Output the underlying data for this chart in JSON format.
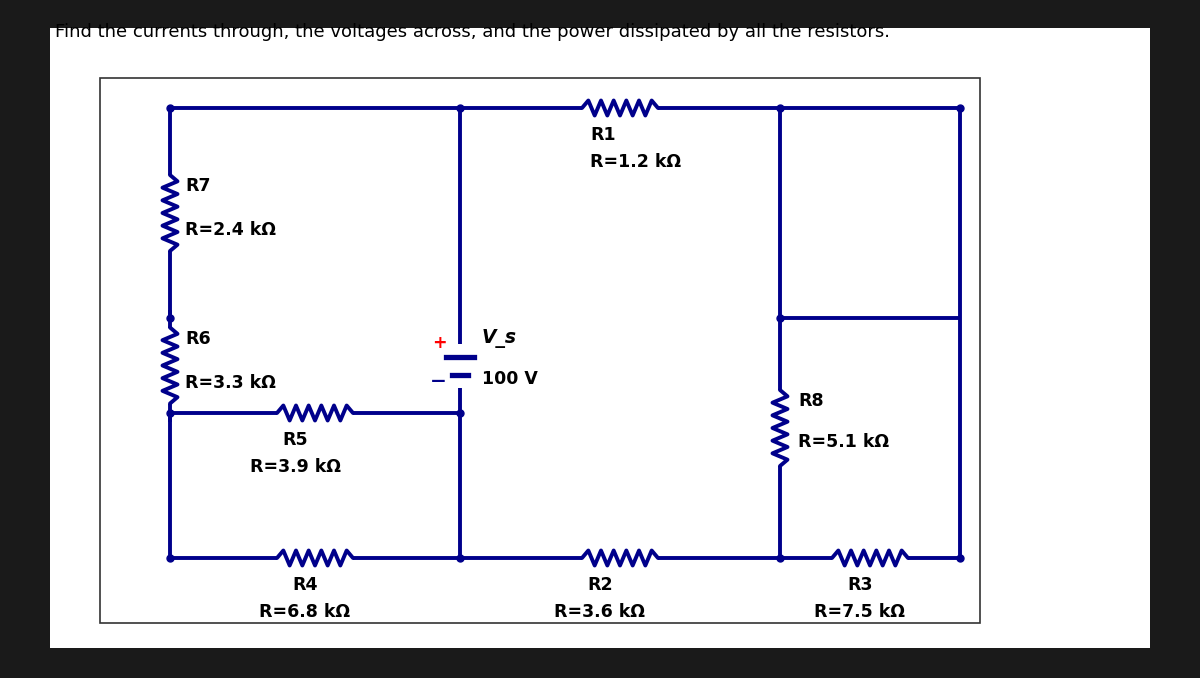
{
  "title": "Find the currents through, the voltages across, and the power dissipated by all the resistors.",
  "outer_bg": "#1a1a1a",
  "inner_bg": "#f0f0f0",
  "circuit_color": "#00008B",
  "wire_lw": 2.8,
  "font_size": 12.5,
  "title_font_size": 13,
  "components": {
    "R1": {
      "name": "R1",
      "value": "R=1.2 kΩ"
    },
    "R2": {
      "name": "R2",
      "value": "R=3.6 kΩ"
    },
    "R3": {
      "name": "R3",
      "value": "R=7.5 kΩ"
    },
    "R4": {
      "name": "R4",
      "value": "R=6.8 kΩ"
    },
    "R5": {
      "name": "R5",
      "value": "R=3.9 kΩ"
    },
    "R6": {
      "name": "R6",
      "value": "R=3.3 kΩ"
    },
    "R7": {
      "name": "R7",
      "value": "R=2.4 kΩ"
    },
    "R8": {
      "name": "R8",
      "value": "R=5.1 kΩ"
    },
    "Vs": {
      "name": "V_s",
      "value": "100 V"
    }
  },
  "xL": 1.7,
  "xM": 4.6,
  "xR8": 7.8,
  "xR": 9.6,
  "yT": 5.7,
  "yMid": 3.6,
  "yR5": 2.65,
  "yB": 1.2
}
